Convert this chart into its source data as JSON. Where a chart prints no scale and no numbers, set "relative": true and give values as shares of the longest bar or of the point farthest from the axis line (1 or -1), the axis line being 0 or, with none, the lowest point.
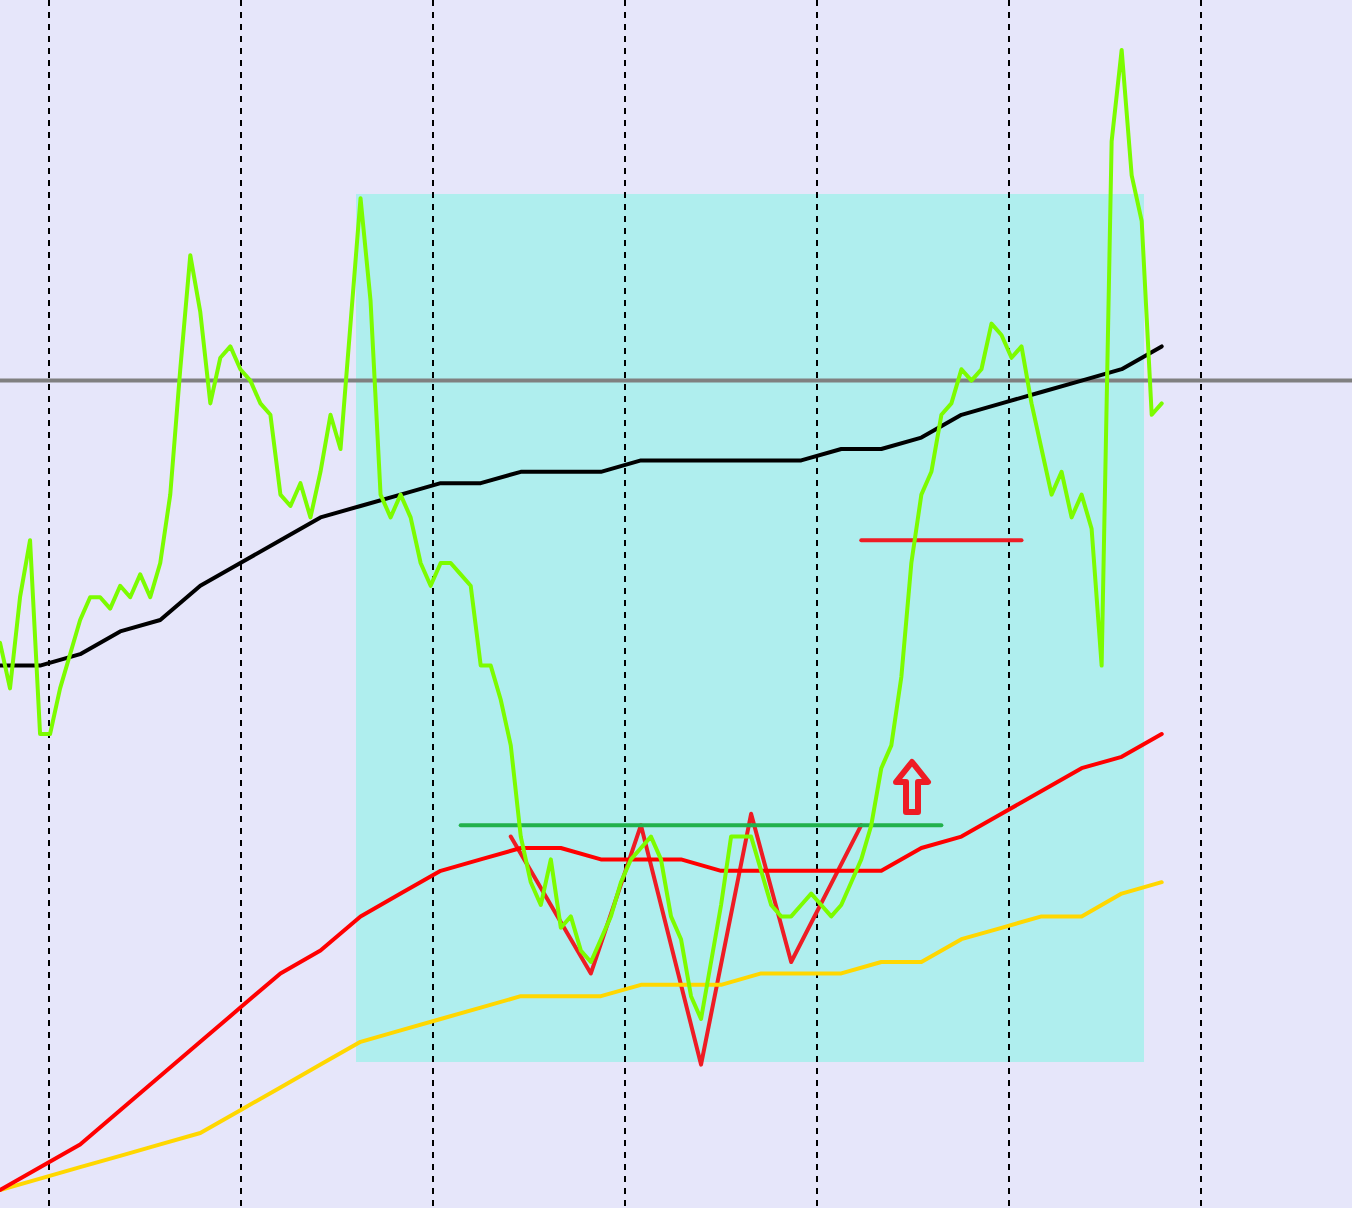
{
  "chart_data": {
    "type": "line",
    "relative": true,
    "marker": "none",
    "categories": [
      null,
      null,
      null,
      null,
      null,
      null,
      null,
      null,
      null,
      null,
      null,
      null,
      null,
      null,
      null,
      null,
      null,
      null,
      null,
      null,
      null,
      null,
      null,
      null,
      null,
      null,
      null,
      null,
      null,
      null,
      null,
      null,
      null,
      null,
      null,
      null,
      null,
      null,
      null,
      null,
      null,
      null,
      null,
      null,
      null,
      null,
      null,
      null,
      null,
      null,
      null,
      null,
      null,
      null,
      null,
      null,
      null,
      null,
      null,
      null,
      null,
      null,
      null,
      null,
      null,
      null,
      null,
      null,
      null,
      null,
      null,
      null,
      null,
      null,
      null,
      null,
      null,
      null,
      null,
      null,
      null,
      null,
      null,
      null,
      null,
      null,
      null,
      null,
      null,
      null,
      null,
      null,
      null,
      null,
      null,
      null,
      null,
      null,
      null,
      null,
      null,
      null,
      null,
      null,
      null,
      null,
      null,
      null,
      null,
      null,
      null,
      null,
      null,
      null,
      null,
      null,
      null,
      null,
      null,
      null,
      null,
      null,
      null,
      null,
      null,
      null,
      null,
      null,
      null,
      null,
      null,
      null,
      null,
      null,
      null,
      null
    ],
    "series": [
      {
        "color": "#7cfc00",
        "values": [
          0.48,
          0.44,
          0.52,
          0.57,
          0.4,
          0.4,
          0.44,
          0.47,
          0.5,
          0.52,
          0.52,
          0.51,
          0.53,
          0.52,
          0.54,
          0.52,
          0.55,
          0.61,
          0.72,
          0.82,
          0.77,
          0.69,
          0.73,
          0.74,
          0.72,
          0.71,
          0.69,
          0.68,
          0.61,
          0.6,
          0.62,
          0.59,
          0.63,
          0.68,
          0.65,
          0.76,
          0.87,
          0.78,
          0.61,
          0.59,
          0.61,
          0.59,
          0.55,
          0.53,
          0.55,
          0.55,
          0.54,
          0.53,
          0.46,
          0.46,
          0.43,
          0.39,
          0.31,
          0.27,
          0.25,
          0.29,
          0.23,
          0.24,
          0.21,
          0.2,
          0.22,
          0.24,
          0.27,
          0.29,
          0.3,
          0.31,
          0.29,
          0.24,
          0.22,
          0.17,
          0.15,
          0.2,
          0.25,
          0.31,
          0.31,
          0.31,
          0.28,
          0.25,
          0.24,
          0.24,
          0.25,
          0.26,
          0.25,
          0.24,
          0.25,
          0.27,
          0.29,
          0.32,
          0.37,
          0.39,
          0.45,
          0.55,
          0.61,
          0.63,
          0.68,
          0.69,
          0.72,
          0.71,
          0.72,
          0.76,
          0.75,
          0.73,
          0.74,
          0.69,
          0.65,
          0.61,
          0.63,
          0.59,
          0.61,
          0.58,
          0.46,
          0.92,
          1,
          0.89,
          0.85,
          0.68,
          0.69,
          null,
          null,
          null,
          null,
          null,
          null,
          null,
          null,
          null,
          null,
          null,
          null,
          null,
          null,
          null,
          null,
          null,
          null,
          null
        ]
      },
      {
        "color": "#000000",
        "values": [
          0.46,
          null,
          null,
          null,
          0.46,
          null,
          null,
          null,
          0.47,
          null,
          null,
          null,
          0.49,
          null,
          null,
          null,
          0.5,
          null,
          null,
          null,
          0.53,
          null,
          null,
          null,
          0.55,
          null,
          null,
          null,
          0.57,
          null,
          null,
          null,
          0.59,
          null,
          null,
          null,
          0.6,
          null,
          null,
          null,
          0.61,
          null,
          null,
          null,
          0.62,
          null,
          null,
          null,
          0.62,
          null,
          null,
          null,
          0.63,
          null,
          null,
          null,
          0.63,
          null,
          null,
          null,
          0.63,
          null,
          null,
          null,
          0.64,
          null,
          null,
          null,
          0.64,
          null,
          null,
          null,
          0.64,
          null,
          null,
          null,
          0.64,
          null,
          null,
          null,
          0.64,
          null,
          null,
          null,
          0.65,
          null,
          null,
          null,
          0.65,
          null,
          null,
          null,
          0.66,
          null,
          null,
          null,
          0.68,
          null,
          null,
          null,
          0.69,
          null,
          null,
          null,
          0.7,
          null,
          null,
          null,
          0.71,
          null,
          null,
          null,
          0.72,
          null,
          null,
          null,
          0.74,
          null,
          null,
          null,
          null,
          null,
          null,
          null,
          null,
          null,
          null,
          null,
          null,
          null,
          null,
          null,
          null,
          null,
          null,
          null
        ]
      },
      {
        "color": "#ff0000",
        "values": [
          0,
          null,
          null,
          null,
          0.02,
          null,
          null,
          null,
          0.04,
          null,
          null,
          null,
          0.07,
          null,
          null,
          null,
          0.1,
          null,
          null,
          null,
          0.13,
          null,
          null,
          null,
          0.16,
          null,
          null,
          null,
          0.19,
          null,
          null,
          null,
          0.21,
          null,
          null,
          null,
          0.24,
          null,
          null,
          null,
          0.26,
          null,
          null,
          null,
          0.28,
          null,
          null,
          null,
          0.29,
          null,
          null,
          null,
          0.3,
          null,
          null,
          null,
          0.3,
          null,
          null,
          null,
          0.29,
          null,
          null,
          null,
          0.29,
          null,
          null,
          null,
          0.29,
          null,
          null,
          null,
          0.28,
          null,
          null,
          null,
          0.28,
          null,
          null,
          null,
          0.28,
          null,
          null,
          null,
          0.28,
          null,
          null,
          null,
          0.28,
          null,
          null,
          null,
          0.3,
          null,
          null,
          null,
          0.31,
          null,
          null,
          null,
          0.33,
          null,
          null,
          null,
          0.35,
          null,
          null,
          null,
          0.37,
          null,
          null,
          null,
          0.38,
          null,
          null,
          null,
          0.4,
          null,
          null,
          null,
          null,
          null,
          null,
          null,
          null,
          null,
          null,
          null,
          null,
          null,
          null,
          null,
          null,
          null,
          null,
          null
        ]
      },
      {
        "color": "#ffd700",
        "values": [
          0,
          null,
          null,
          null,
          0.01,
          null,
          null,
          null,
          0.02,
          null,
          null,
          null,
          0.03,
          null,
          null,
          null,
          0.04,
          null,
          null,
          null,
          0.05,
          null,
          null,
          null,
          0.07,
          null,
          null,
          null,
          0.09,
          null,
          null,
          null,
          0.11,
          null,
          null,
          null,
          0.13,
          null,
          null,
          null,
          0.14,
          null,
          null,
          null,
          0.15,
          null,
          null,
          null,
          0.16,
          null,
          null,
          null,
          0.17,
          null,
          null,
          null,
          0.17,
          null,
          null,
          null,
          0.17,
          null,
          null,
          null,
          0.18,
          null,
          null,
          null,
          0.18,
          null,
          null,
          null,
          0.18,
          null,
          null,
          null,
          0.19,
          null,
          null,
          null,
          0.19,
          null,
          null,
          null,
          0.19,
          null,
          null,
          null,
          0.2,
          null,
          null,
          null,
          0.2,
          null,
          null,
          null,
          0.22,
          null,
          null,
          null,
          0.23,
          null,
          null,
          null,
          0.24,
          null,
          null,
          null,
          0.24,
          null,
          null,
          null,
          0.26,
          null,
          null,
          null,
          0.27,
          null,
          null,
          null,
          null,
          null,
          null,
          null,
          null,
          null,
          null,
          null,
          null,
          null,
          null,
          null,
          null,
          null,
          null,
          null
        ]
      },
      {
        "color": "#808080",
        "values": [
          0.71,
          null,
          null,
          null,
          null,
          null,
          null,
          null,
          null,
          null,
          null,
          null,
          null,
          null,
          null,
          null,
          null,
          null,
          null,
          null,
          null,
          null,
          null,
          null,
          null,
          null,
          null,
          null,
          null,
          null,
          null,
          null,
          null,
          null,
          null,
          null,
          null,
          null,
          null,
          null,
          null,
          null,
          null,
          null,
          null,
          null,
          null,
          null,
          null,
          null,
          null,
          null,
          null,
          null,
          null,
          null,
          null,
          null,
          null,
          null,
          null,
          null,
          null,
          null,
          null,
          null,
          null,
          null,
          null,
          null,
          null,
          null,
          null,
          null,
          null,
          null,
          null,
          null,
          null,
          null,
          null,
          null,
          null,
          null,
          null,
          null,
          null,
          null,
          null,
          null,
          null,
          null,
          null,
          null,
          null,
          null,
          null,
          null,
          null,
          null,
          null,
          null,
          null,
          null,
          null,
          null,
          null,
          null,
          null,
          null,
          null,
          null,
          null,
          null,
          null,
          null,
          null,
          null,
          null,
          null,
          null,
          null,
          null,
          null,
          null,
          null,
          null,
          null,
          null,
          null,
          null,
          null,
          null,
          null,
          null,
          0.71
        ]
      },
      {
        "color": "#22b14c",
        "values": [
          null,
          null,
          null,
          null,
          null,
          null,
          null,
          null,
          null,
          null,
          null,
          null,
          null,
          null,
          null,
          null,
          null,
          null,
          null,
          null,
          null,
          null,
          null,
          null,
          null,
          null,
          null,
          null,
          null,
          null,
          null,
          null,
          null,
          null,
          null,
          null,
          null,
          null,
          null,
          null,
          null,
          null,
          null,
          null,
          null,
          null,
          0.32,
          null,
          null,
          null,
          null,
          null,
          null,
          null,
          null,
          null,
          null,
          null,
          null,
          null,
          null,
          null,
          null,
          null,
          null,
          null,
          null,
          null,
          null,
          null,
          null,
          null,
          null,
          null,
          null,
          null,
          null,
          null,
          null,
          null,
          null,
          null,
          null,
          null,
          null,
          null,
          null,
          null,
          null,
          null,
          null,
          null,
          null,
          null,
          0.32,
          null,
          null,
          null,
          null,
          null,
          null,
          null,
          null,
          null,
          null,
          null,
          null,
          null,
          null,
          null,
          null,
          null,
          null,
          null,
          null,
          null,
          null,
          null,
          null,
          null,
          null,
          null,
          null,
          null,
          null,
          null,
          null,
          null,
          null,
          null,
          null,
          null,
          null,
          null,
          null,
          null
        ]
      },
      {
        "color": "#ee1c24",
        "values": [
          null,
          null,
          null,
          null,
          null,
          null,
          null,
          null,
          null,
          null,
          null,
          null,
          null,
          null,
          null,
          null,
          null,
          null,
          null,
          null,
          null,
          null,
          null,
          null,
          null,
          null,
          null,
          null,
          null,
          null,
          null,
          null,
          null,
          null,
          null,
          null,
          null,
          null,
          null,
          null,
          null,
          null,
          null,
          null,
          null,
          null,
          null,
          null,
          null,
          null,
          null,
          null,
          null,
          null,
          null,
          null,
          null,
          null,
          null,
          null,
          null,
          null,
          null,
          null,
          null,
          null,
          null,
          null,
          null,
          null,
          null,
          null,
          null,
          null,
          null,
          null,
          null,
          null,
          null,
          null,
          null,
          null,
          null,
          null,
          null,
          null,
          0.57,
          null,
          null,
          null,
          null,
          null,
          null,
          null,
          null,
          null,
          null,
          null,
          null,
          null,
          null,
          null,
          0.57,
          null,
          null,
          null,
          null,
          null,
          null,
          null,
          null,
          null,
          null,
          null,
          null,
          null,
          null,
          null,
          null,
          null,
          null,
          null,
          null,
          null,
          null,
          null,
          null,
          null,
          null,
          null,
          null,
          null,
          null,
          null,
          null,
          null
        ]
      },
      {
        "color": "#ee1c24",
        "values": [
          null,
          null,
          null,
          null,
          null,
          null,
          null,
          null,
          null,
          null,
          null,
          null,
          null,
          null,
          null,
          null,
          null,
          null,
          null,
          null,
          null,
          null,
          null,
          null,
          null,
          null,
          null,
          null,
          null,
          null,
          null,
          null,
          null,
          null,
          null,
          null,
          null,
          null,
          null,
          null,
          null,
          null,
          null,
          null,
          null,
          null,
          null,
          null,
          null,
          null,
          null,
          0.31,
          null,
          null,
          null,
          null,
          null,
          null,
          null,
          0.19,
          null,
          null,
          null,
          null,
          0.32,
          null,
          null,
          null,
          null,
          null,
          0.11,
          null,
          null,
          null,
          null,
          0.33,
          null,
          null,
          null,
          0.2,
          null,
          null,
          null,
          null,
          null,
          null,
          0.32,
          null,
          null,
          null,
          null,
          null,
          null,
          null,
          null,
          null,
          null,
          null,
          null,
          null,
          null,
          null,
          null,
          null,
          null,
          null,
          null,
          null,
          null,
          null,
          null,
          null,
          null,
          null,
          null,
          null,
          null,
          null,
          null,
          null,
          null,
          null,
          null,
          null,
          null,
          null,
          null,
          null,
          null,
          null,
          null,
          null,
          null,
          null,
          null,
          null
        ]
      }
    ]
  }
}
